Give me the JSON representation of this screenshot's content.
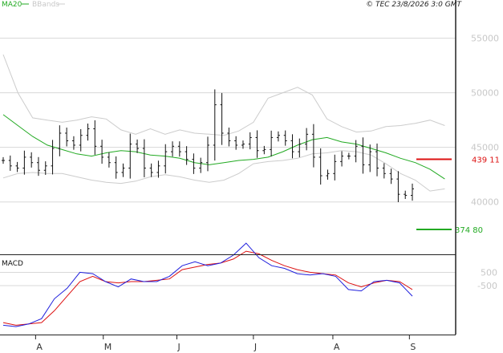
{
  "header": {
    "legend_ma": "MA20",
    "legend_bb": "BBands",
    "copyright": "© TEC 23/8/2026 3:0 GMT"
  },
  "colors": {
    "ma": "#22aa22",
    "bbands": "#cccccc",
    "price": "#111111",
    "macd": "#1f1fdd",
    "signal": "#dd1111",
    "resistance": "#dd1111",
    "support": "#22aa22",
    "grid": "#d8d8d8",
    "frame": "#222222",
    "tick_label": "#c8c8c8"
  },
  "price_panel": {
    "ylim": [
      35200,
      58500
    ],
    "y_ticks": [
      {
        "value": 40000,
        "label": "40000"
      },
      {
        "value": 45000,
        "label": "45000"
      },
      {
        "value": 50000,
        "label": "50000"
      },
      {
        "value": 55000,
        "label": "55000"
      }
    ],
    "resistance": {
      "value": 43911,
      "label": "439 11"
    },
    "support": {
      "value": 37480,
      "label": "374 80"
    }
  },
  "macd_panel": {
    "label": "MACD",
    "ylim": [
      -4200,
      1800
    ],
    "y_ticks": [
      {
        "value": 500,
        "label": "500"
      },
      {
        "value": -500,
        "label": "-500"
      }
    ]
  },
  "x_axis": {
    "n_sessions": 140,
    "months": [
      {
        "index": 11,
        "label": "A"
      },
      {
        "index": 34,
        "label": "M"
      },
      {
        "index": 59,
        "label": "J"
      },
      {
        "index": 85,
        "label": "J"
      },
      {
        "index": 112,
        "label": "A"
      },
      {
        "index": 138,
        "label": "S"
      }
    ]
  },
  "chart_data": [
    {
      "type": "line",
      "title": "",
      "x_start": 0,
      "x_step": 5,
      "series": [
        {
          "name": "MA20",
          "values": [
            48000,
            47000,
            46000,
            45200,
            44800,
            44400,
            44200,
            44500,
            44700,
            44600,
            44300,
            44200,
            44000,
            43600,
            43400,
            43600,
            43800,
            43900,
            44100,
            44600,
            45200,
            45700,
            45900,
            45500,
            45300,
            44900,
            44500,
            44000,
            43600,
            43000,
            42100
          ]
        }
      ],
      "price_close": [
        43800,
        43300,
        43100,
        44100,
        43600,
        42900,
        43300,
        44900,
        46300,
        45600,
        45200,
        46100,
        46700,
        45100,
        44100,
        43600,
        42700,
        43100,
        45300,
        44900,
        43100,
        42700,
        43300,
        44600,
        45100,
        44600,
        43900,
        43100,
        43600,
        45200,
        48900,
        46300,
        45600,
        45200,
        45300,
        45900,
        44700,
        44800,
        45900,
        46100,
        45600,
        44600,
        45300,
        46200,
        44100,
        42400,
        42600,
        43700,
        44200,
        44200,
        45100,
        43400,
        44600,
        43100,
        42600,
        42100,
        40700,
        40600,
        41200
      ],
      "bbands_upper": [
        53500,
        50000,
        47700,
        47500,
        47300,
        47500,
        47800,
        47600,
        46600,
        46200,
        46700,
        46200,
        46600,
        46300,
        46200,
        46100,
        46500,
        47300,
        49500,
        50000,
        50500,
        49800,
        47600,
        46900,
        46400,
        46500,
        46900,
        47000,
        47200,
        47500,
        47000
      ],
      "bbands_lower": [
        42200,
        42600,
        42700,
        42600,
        42600,
        42300,
        42000,
        41800,
        41700,
        41900,
        42300,
        42500,
        42300,
        42000,
        41800,
        42000,
        42600,
        43500,
        43700,
        43800,
        44000,
        44400,
        44500,
        44700,
        44600,
        44300,
        43500,
        42600,
        42000,
        41000,
        41200
      ],
      "ylim": [
        35200,
        58500
      ]
    },
    {
      "type": "line",
      "title": "MACD",
      "x_start": 0,
      "x_step": 5,
      "series": [
        {
          "name": "",
          "values": [
            -3500,
            -3600,
            -3400,
            -3000,
            -1500,
            -700,
            500,
            400,
            -200,
            -600,
            0,
            -200,
            -200,
            200,
            1000,
            1300,
            1000,
            1200,
            1800,
            2700,
            1600,
            1000,
            800,
            400,
            300,
            400,
            200,
            -800,
            -900,
            -200,
            -100,
            -300,
            -1300
          ]
        },
        {
          "name": "",
          "values": [
            -3300,
            -3500,
            -3400,
            -3300,
            -2400,
            -1300,
            -200,
            200,
            -200,
            -300,
            -200,
            -200,
            -100,
            0,
            700,
            900,
            1100,
            1200,
            1500,
            2100,
            1900,
            1400,
            1000,
            700,
            500,
            400,
            300,
            -300,
            -600,
            -300,
            -100,
            -200,
            -800
          ]
        }
      ],
      "ylim": [
        -4200,
        1800
      ]
    }
  ]
}
